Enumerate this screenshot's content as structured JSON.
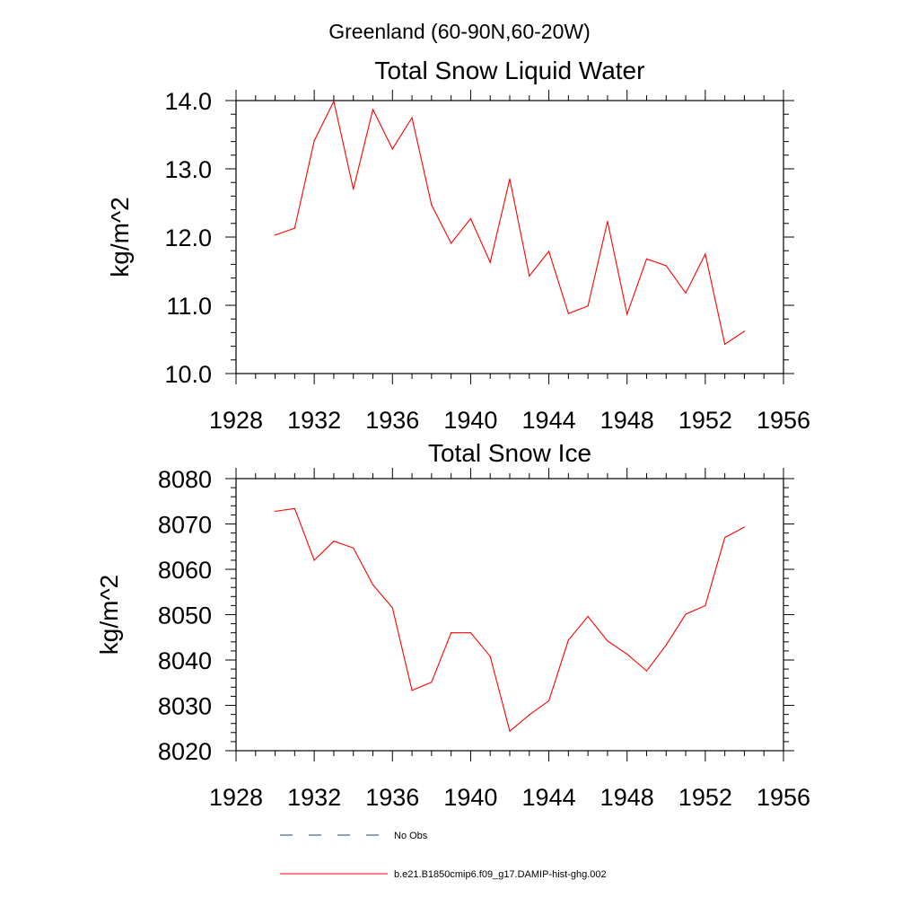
{
  "figure": {
    "supertitle": "Greenland (60-90N,60-20W)"
  },
  "chart_data": [
    {
      "type": "line",
      "title": "Total Snow Liquid Water",
      "xlabel": "",
      "ylabel": "kg/m^2",
      "xlim": [
        1928,
        1956
      ],
      "ylim": [
        10.0,
        14.0
      ],
      "x_ticks": [
        "1928",
        "1932",
        "1936",
        "1940",
        "1944",
        "1948",
        "1952",
        "1956"
      ],
      "y_ticks": [
        "10.0",
        "11.0",
        "12.0",
        "13.0",
        "14.0"
      ],
      "series": [
        {
          "name": "b.e21.B1850cmip6.f09_g17.DAMIP-hist-ghg.002",
          "color": "#ff0000",
          "x": [
            1930,
            1931,
            1932,
            1933,
            1934,
            1935,
            1936,
            1937,
            1938,
            1939,
            1940,
            1941,
            1942,
            1943,
            1944,
            1945,
            1946,
            1947,
            1948,
            1949,
            1950,
            1951,
            1952,
            1953,
            1954
          ],
          "values": [
            12.03,
            12.13,
            13.41,
            13.99,
            12.7,
            13.87,
            13.29,
            13.75,
            12.47,
            11.91,
            12.27,
            11.63,
            12.85,
            11.43,
            11.79,
            10.88,
            10.99,
            12.23,
            10.87,
            11.68,
            11.58,
            11.18,
            11.75,
            10.43,
            10.62
          ]
        }
      ],
      "grid": false
    },
    {
      "type": "line",
      "title": "Total Snow Ice",
      "xlabel": "",
      "ylabel": "kg/m^2",
      "xlim": [
        1928,
        1956
      ],
      "ylim": [
        8020,
        8080
      ],
      "x_ticks": [
        "1928",
        "1932",
        "1936",
        "1940",
        "1944",
        "1948",
        "1952",
        "1956"
      ],
      "y_ticks": [
        "8020",
        "8030",
        "8040",
        "8050",
        "8060",
        "8070",
        "8080"
      ],
      "series": [
        {
          "name": "b.e21.B1850cmip6.f09_g17.DAMIP-hist-ghg.002",
          "color": "#ff0000",
          "x": [
            1930,
            1931,
            1932,
            1933,
            1934,
            1935,
            1936,
            1937,
            1938,
            1939,
            1940,
            1941,
            1942,
            1943,
            1944,
            1945,
            1946,
            1947,
            1948,
            1949,
            1950,
            1951,
            1952,
            1953,
            1954
          ],
          "values": [
            8072.8,
            8073.4,
            8062.0,
            8066.2,
            8064.7,
            8056.6,
            8051.5,
            8033.3,
            8035.1,
            8046.0,
            8046.0,
            8040.8,
            8024.3,
            8027.9,
            8031.0,
            8044.4,
            8049.6,
            8044.2,
            8041.3,
            8037.6,
            8043.3,
            8050.1,
            8052.0,
            8067.0,
            8069.3
          ]
        }
      ],
      "grid": false
    }
  ],
  "legend": {
    "placement": "bottom",
    "items": [
      {
        "label": "No Obs",
        "color": "#27408b",
        "style": "dashed"
      },
      {
        "label": "b.e21.B1850cmip6.f09_g17.DAMIP-hist-ghg.002",
        "color": "#ff0000",
        "style": "solid"
      }
    ]
  }
}
